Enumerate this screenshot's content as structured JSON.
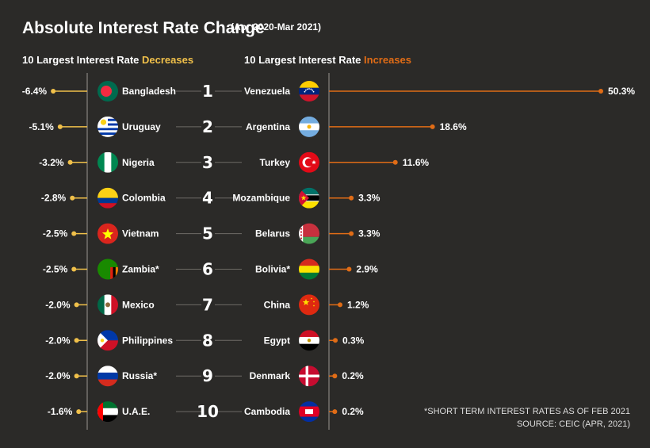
{
  "title": "Absolute Interest Rate Change",
  "subtitle": "(Apr 2020-Mar 2021)",
  "left_heading": {
    "prefix": "10 Largest Interest Rate ",
    "accent": "Decreases"
  },
  "right_heading": {
    "prefix": "10 Largest Interest Rate ",
    "accent": "Increases"
  },
  "footnote": "*SHORT TERM INTEREST RATES AS OF FEB 2021",
  "source": "SOURCE: CEIC (APR, 2021)",
  "colors": {
    "background": "#2b2a28",
    "decrease": "#f0c04a",
    "increase": "#e06c16",
    "axis": "#888580",
    "connector": "#6e6b66"
  },
  "chart_data": {
    "type": "bar",
    "ranks": [
      "1",
      "2",
      "3",
      "4",
      "5",
      "6",
      "7",
      "8",
      "9",
      "10"
    ],
    "series": [
      {
        "name": "Decreases",
        "countries": [
          "Bangladesh",
          "Uruguay",
          "Nigeria",
          "Colombia",
          "Vietnam",
          "Zambia*",
          "Mexico",
          "Philippines",
          "Russia*",
          "U.A.E."
        ],
        "flags": [
          "bangladesh",
          "uruguay",
          "nigeria",
          "colombia",
          "vietnam",
          "zambia",
          "mexico",
          "philippines",
          "russia",
          "uae"
        ],
        "values": [
          -6.4,
          -5.1,
          -3.2,
          -2.8,
          -2.5,
          -2.5,
          -2.0,
          -2.0,
          -2.0,
          -1.6
        ],
        "labels": [
          "-6.4%",
          "-5.1%",
          "-3.2%",
          "-2.8%",
          "-2.5%",
          "-2.5%",
          "-2.0%",
          "-2.0%",
          "-2.0%",
          "-1.6%"
        ]
      },
      {
        "name": "Increases",
        "countries": [
          "Venezuela",
          "Argentina",
          "Turkey",
          "Mozambique",
          "Belarus",
          "Bolivia*",
          "China",
          "Egypt",
          "Denmark",
          "Cambodia"
        ],
        "flags": [
          "venezuela",
          "argentina",
          "turkey",
          "mozambique",
          "belarus",
          "bolivia",
          "china",
          "egypt",
          "denmark",
          "cambodia"
        ],
        "values": [
          50.3,
          18.6,
          11.6,
          3.3,
          3.3,
          2.9,
          1.2,
          0.3,
          0.2,
          0.2
        ],
        "labels": [
          "50.3%",
          "18.6%",
          "11.6%",
          "3.3%",
          "3.3%",
          "2.9%",
          "1.2%",
          "0.3%",
          "0.2%",
          "0.2%"
        ]
      }
    ]
  }
}
